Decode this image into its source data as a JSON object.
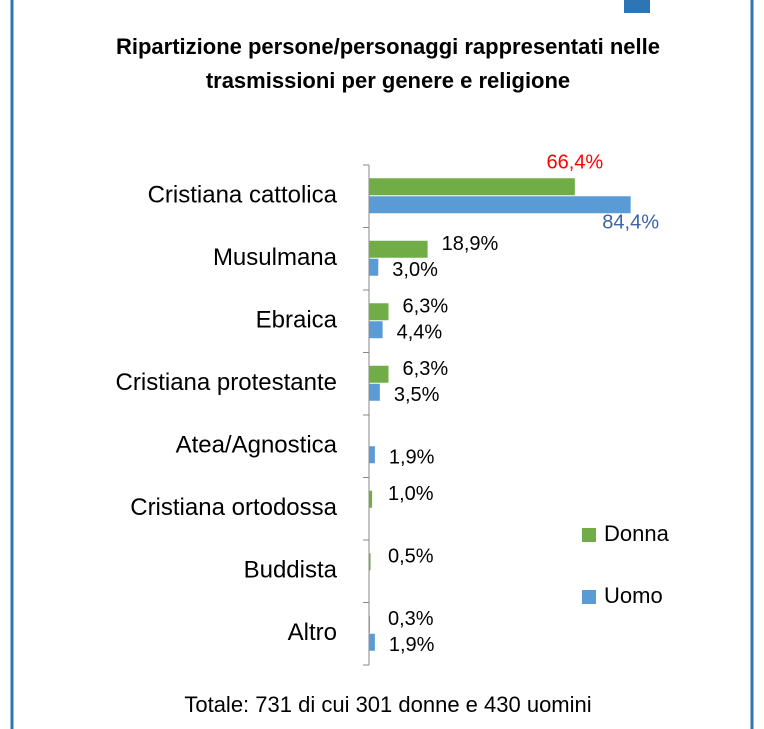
{
  "chart_data": {
    "type": "bar",
    "orientation": "horizontal",
    "title_lines": [
      "Ripartizione persone/personaggi rappresentati nelle",
      "trasmissioni per genere e religione"
    ],
    "categories": [
      "Cristiana cattolica",
      "Musulmana",
      "Ebraica",
      "Cristiana protestante",
      "Atea/Agnostica",
      "Cristiana ortodossa",
      "Buddista",
      "Altro"
    ],
    "series": [
      {
        "name": "Donna",
        "color": "#70ad47",
        "values": [
          66.4,
          18.9,
          6.3,
          6.3,
          null,
          1.0,
          0.5,
          0.3
        ],
        "value_labels": [
          "66,4%",
          "18,9%",
          "6,3%",
          "6,3%",
          null,
          "1,0%",
          "0,5%",
          "0,3%"
        ],
        "label_colors": [
          "#ff0000",
          "#000000",
          "#000000",
          "#000000",
          "#000000",
          "#000000",
          "#000000",
          "#000000"
        ]
      },
      {
        "name": "Uomo",
        "color": "#5b9bd5",
        "values": [
          84.4,
          3.0,
          4.4,
          3.5,
          1.9,
          null,
          null,
          1.9
        ],
        "value_labels": [
          "84,4%",
          "3,0%",
          "4,4%",
          "3,5%",
          "1,9%",
          null,
          null,
          "1,9%"
        ],
        "label_colors": [
          "#3c64a8",
          "#000000",
          "#000000",
          "#000000",
          "#000000",
          "#000000",
          "#000000",
          "#000000"
        ]
      }
    ],
    "note": "Totale: 731 di cui 301 donne e 430 uomini"
  }
}
